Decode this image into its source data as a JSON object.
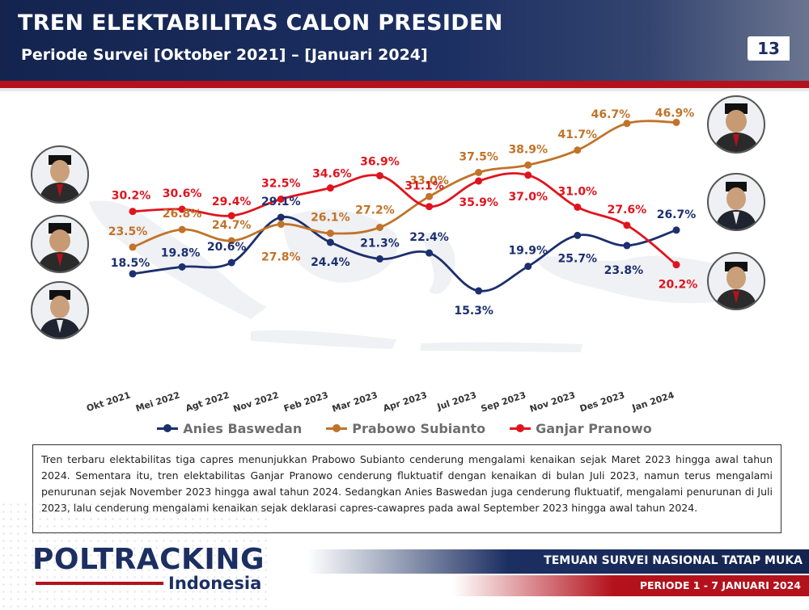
{
  "header": {
    "title": "TREN ELEKTABILITAS CALON PRESIDEN",
    "subtitle": "Periode Survei [Oktober 2021] – [Januari 2024]",
    "page_number": "13"
  },
  "colors": {
    "anies": "#1c2f6e",
    "prabowo": "#c0732a",
    "ganjar": "#e0141e",
    "navy": "#1c2f62",
    "red": "#b3121c"
  },
  "chart_data": {
    "type": "line",
    "categories": [
      "Okt 2021",
      "Mei 2022",
      "Agt 2022",
      "Nov 2022",
      "Feb 2023",
      "Mar 2023",
      "Apr 2023",
      "Jul 2023",
      "Sep 2023",
      "Nov 2023",
      "Des 2023",
      "Jan 2024"
    ],
    "series": [
      {
        "name": "Anies Baswedan",
        "color": "#1c2f6e",
        "values": [
          18.5,
          19.8,
          20.6,
          29.1,
          24.4,
          21.3,
          22.4,
          15.3,
          19.9,
          25.7,
          23.8,
          26.7
        ],
        "labels": [
          "18.5%",
          "19.8%",
          "20.6%",
          "29.1%",
          "24.4%",
          "21.3%",
          "22.4%",
          "15.3%",
          "19.9%",
          "25.7%",
          "23.8%",
          "26.7%"
        ]
      },
      {
        "name": "Prabowo Subianto",
        "color": "#c0732a",
        "values": [
          23.5,
          26.8,
          24.7,
          27.8,
          26.1,
          27.2,
          33.0,
          37.5,
          38.9,
          41.7,
          46.7,
          46.9
        ],
        "labels": [
          "23.5%",
          "26.8%",
          "24.7%",
          "27.8%",
          "26.1%",
          "27.2%",
          "33.0%",
          "37.5%",
          "38.9%",
          "41.7%",
          "46.7%",
          "46.9%"
        ]
      },
      {
        "name": "Ganjar Pranowo",
        "color": "#e0141e",
        "values": [
          30.2,
          30.6,
          29.4,
          32.5,
          34.6,
          36.9,
          31.1,
          35.9,
          37.0,
          31.0,
          27.6,
          20.2
        ],
        "labels": [
          "30.2%",
          "30.6%",
          "29.4%",
          "32.5%",
          "34.6%",
          "36.9%",
          "31.1%",
          "35.9%",
          "37.0%",
          "31.0%",
          "27.6%",
          "20.2%"
        ]
      }
    ]
  },
  "legend": {
    "anies": "Anies Baswedan",
    "prabowo": "Prabowo Subianto",
    "ganjar": "Ganjar Pranowo"
  },
  "description": "Tren terbaru elektabilitas tiga capres menunjukkan Prabowo Subianto cenderung mengalami kenaikan sejak Maret 2023 hingga awal tahun 2024. Sementara itu, tren elektabilitas Ganjar Pranowo cenderung fluktuatif dengan kenaikan di bulan Juli 2023, namun terus mengalami penurunan sejak November 2023 hingga awal tahun 2024. Sedangkan Anies Baswedan juga cenderung fluktuatif, mengalami penurunan di Juli 2023, lalu cenderung mengalami kenaikan sejak deklarasi capres-cawapres pada awal September 2023 hingga awal tahun 2024.",
  "footer": {
    "logo_main": "POLTRACKING",
    "logo_sub": "Indonesia",
    "line1": "TEMUAN SURVEI NASIONAL TATAP MUKA",
    "line2": "PERIODE 1 - 7 JANUARI 2024"
  }
}
